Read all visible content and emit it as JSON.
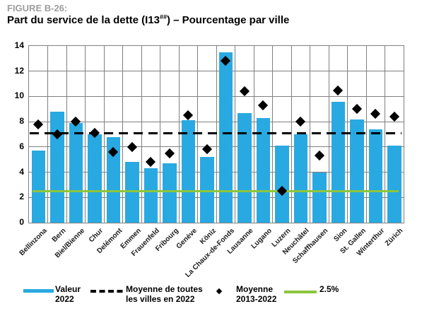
{
  "figure": {
    "label": "FIGURE B-26:",
    "title_pre": "Part du service de la dette (I13",
    "title_sup": "##",
    "title_post": ") – Pourcentage par ville"
  },
  "chart_data": {
    "type": "bar",
    "title": "Part du service de la dette (I13##) – Pourcentage par ville",
    "categories": [
      "Bellinzona",
      "Bern",
      "Biel/Bienne",
      "Chur",
      "Delémont",
      "Emmen",
      "Frauenfeld",
      "Fribourg",
      "Genève",
      "Köniz",
      "La Chaux-de-Fonds",
      "Lausanne",
      "Lugano",
      "Luzern",
      "Neuchâtel",
      "Schaffhausen",
      "Sion",
      "St. Gallen",
      "Winterthur",
      "Zürich"
    ],
    "series": [
      {
        "name": "Valeur 2022",
        "type": "bar",
        "color": "#29a9e1",
        "values": [
          5.7,
          8.8,
          7.9,
          7.0,
          6.8,
          4.8,
          4.3,
          4.7,
          8.1,
          5.2,
          13.5,
          8.7,
          8.3,
          6.1,
          7.0,
          4.0,
          9.6,
          8.2,
          7.4,
          6.1
        ]
      },
      {
        "name": "Moyenne 2013-2022",
        "type": "scatter",
        "marker": "diamond",
        "color": "#000000",
        "values": [
          7.8,
          7.0,
          8.0,
          7.1,
          5.6,
          6.0,
          4.8,
          5.5,
          8.5,
          5.8,
          12.8,
          10.4,
          9.3,
          2.5,
          8.0,
          5.3,
          10.5,
          9.0,
          8.6,
          8.4
        ]
      }
    ],
    "reference_lines": [
      {
        "name": "Moyenne de toutes les villes en 2022",
        "style": "dashed",
        "color": "#000000",
        "value": 7.1
      },
      {
        "name": "2.5%",
        "style": "solid",
        "color": "#8cc63e",
        "value": 2.5
      }
    ],
    "xlabel": "",
    "ylabel": "",
    "ylim": [
      0,
      14
    ],
    "ytick_step": 2,
    "yticks": [
      "0",
      "2",
      "4",
      "6",
      "8",
      "10",
      "12",
      "14"
    ],
    "grid": "horizontal every 2 units, vertical between categories",
    "gridline_color": "#7f7f7f",
    "legend_position": "bottom"
  },
  "legend": {
    "items": [
      {
        "marker": "bar-swatch",
        "line1": "Valeur",
        "line2": "2022"
      },
      {
        "marker": "dashed-line-swatch",
        "line1": "Moyenne de toutes",
        "line2": "les villes en 2022"
      },
      {
        "marker": "diamond-marker",
        "line1": "Moyenne",
        "line2": "2013-2022"
      },
      {
        "marker": "green-line-swatch",
        "line1": "2.5%",
        "line2": ""
      }
    ]
  }
}
